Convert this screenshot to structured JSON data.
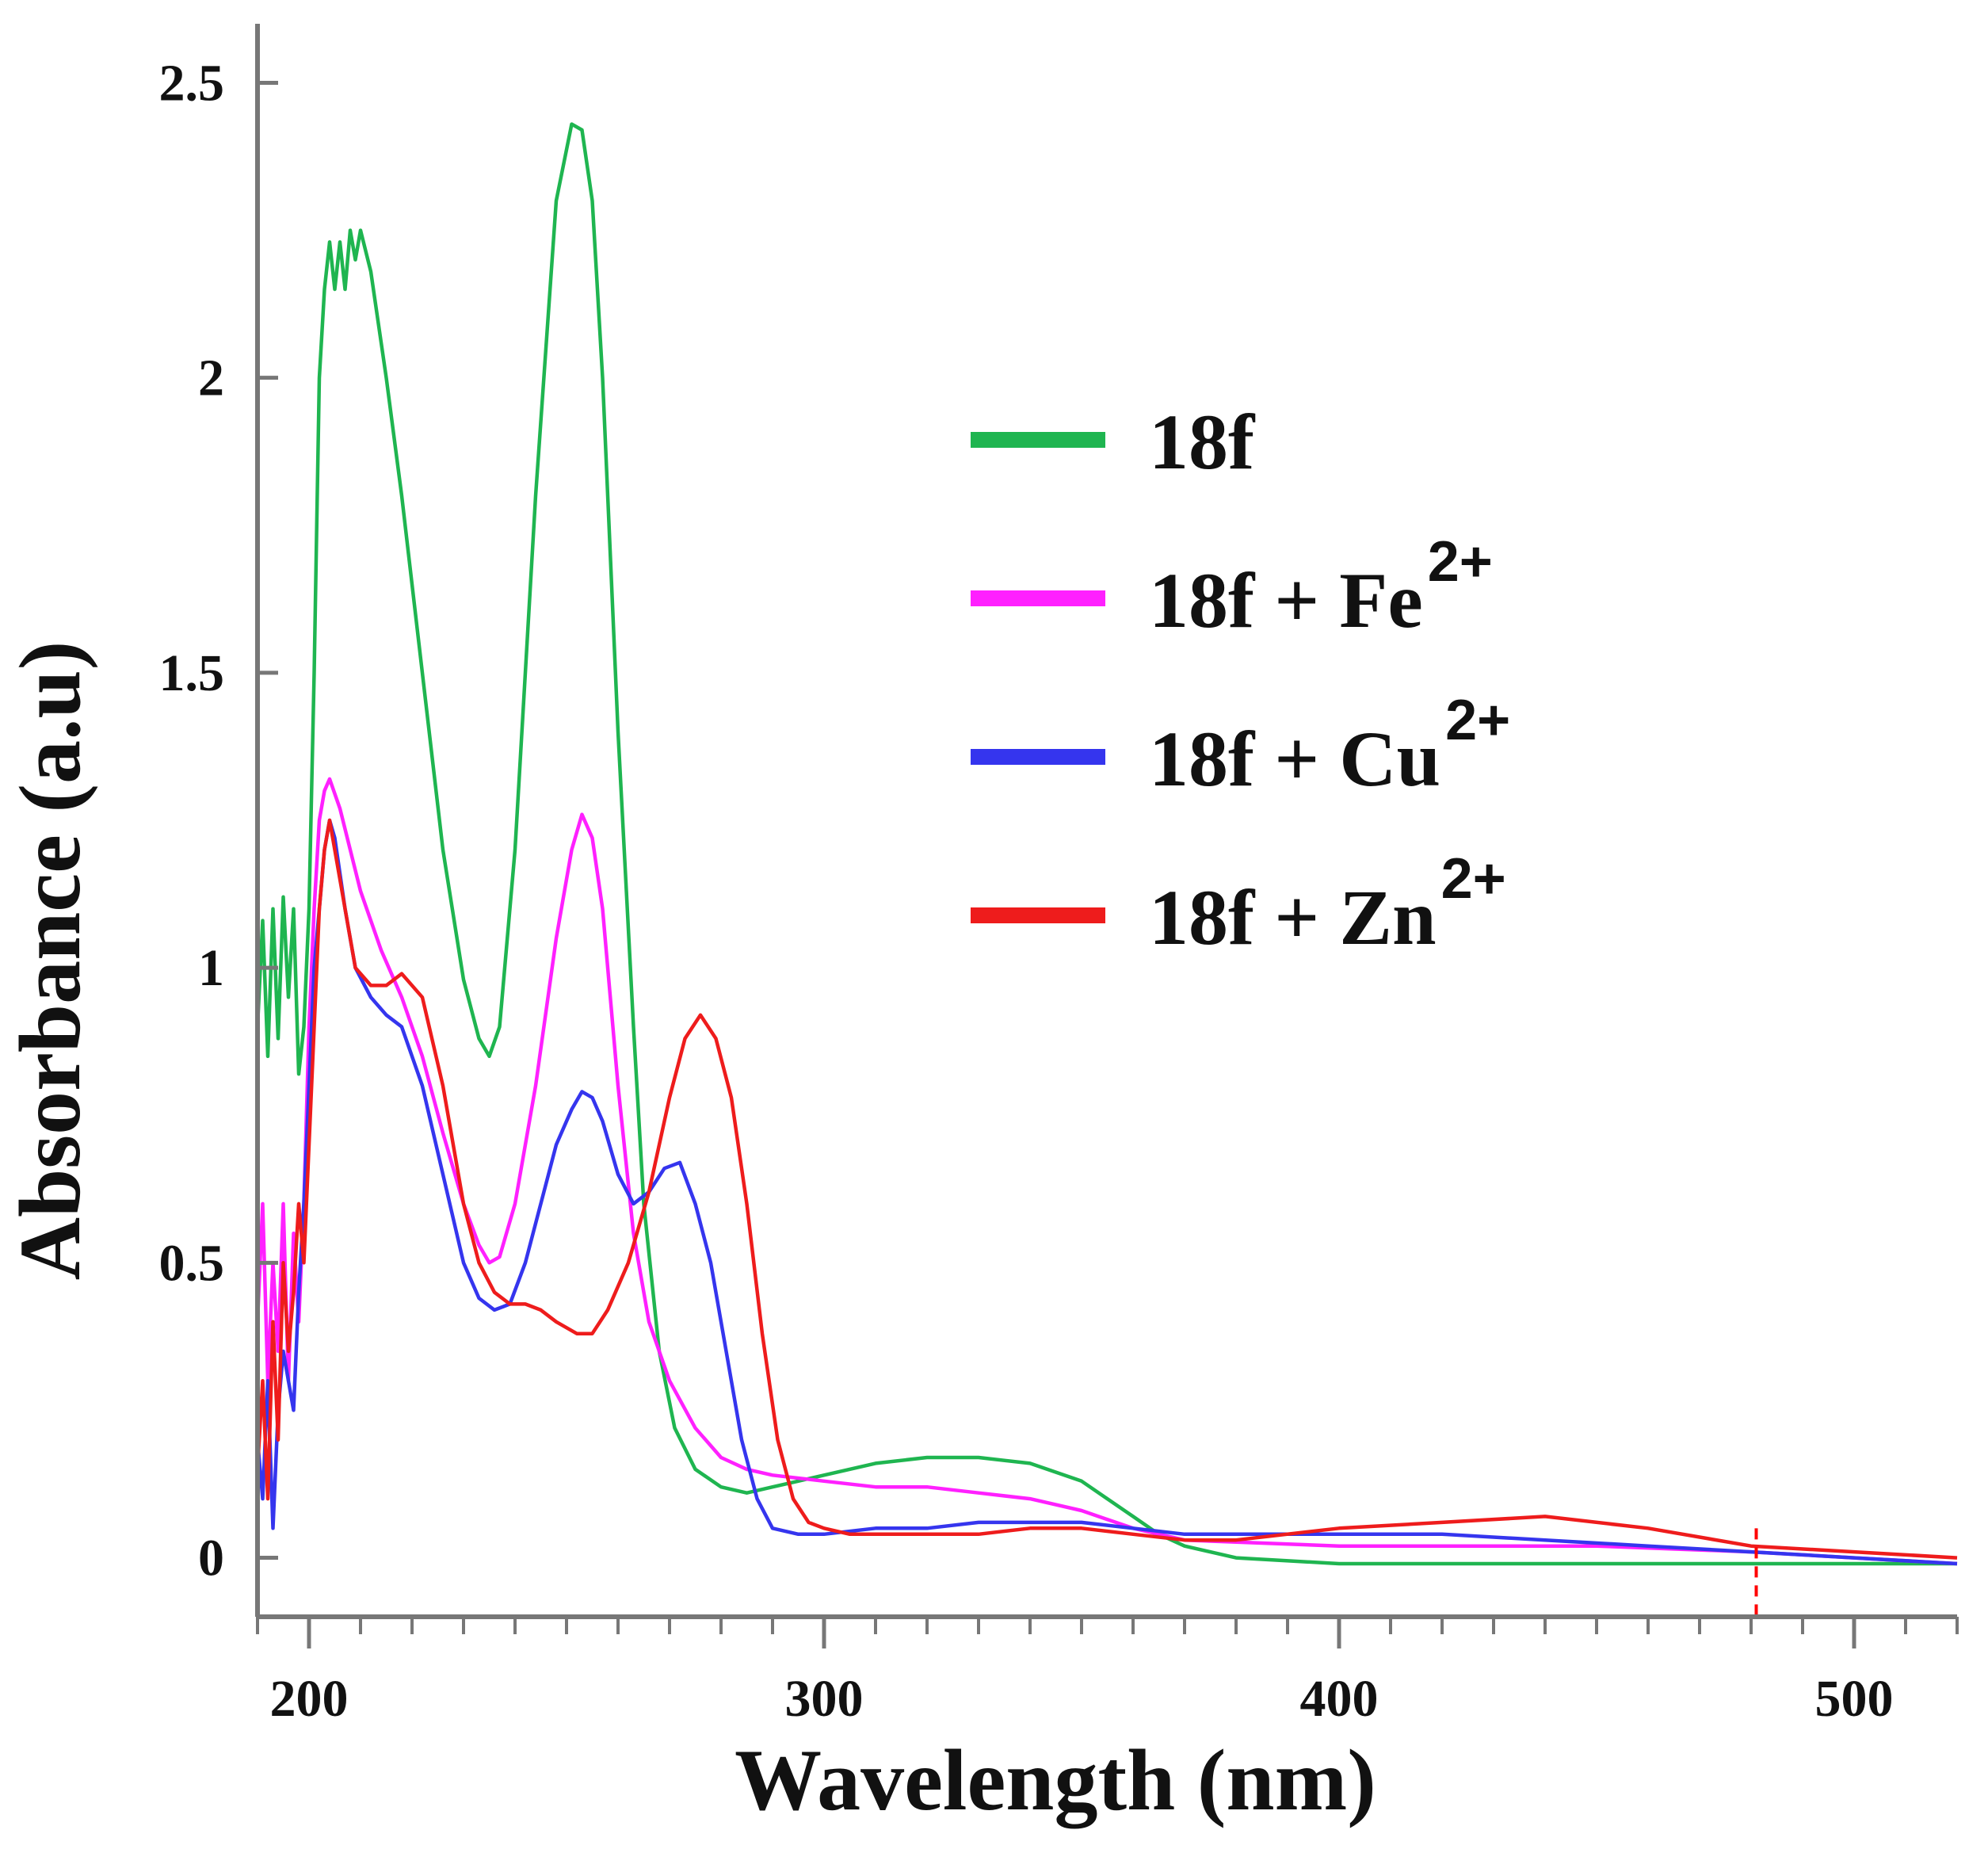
{
  "chart_data": {
    "type": "line",
    "xlabel": "Wavelength (nm)",
    "ylabel": "Absorbance (a.u)",
    "xlim": [
      190,
      520
    ],
    "ylim": [
      -0.1,
      2.6
    ],
    "x_ticks": [
      200,
      300,
      400,
      500
    ],
    "x_tick_labels": [
      "200",
      "300",
      "400",
      "500"
    ],
    "y_ticks": [
      0,
      0.5,
      1,
      1.5,
      2,
      2.5
    ],
    "y_tick_labels": [
      "0",
      "0.5",
      "1",
      "1.5",
      "2",
      "2.5"
    ],
    "x_minor_step": 10,
    "legend_position": "top-right",
    "annotations": [
      {
        "type": "vertical-dashed-marker",
        "x": 481,
        "color": "#ff0000"
      }
    ],
    "series": [
      {
        "name": "18f",
        "label": "18f",
        "sup": "",
        "color": "#1fb550",
        "x": [
          190,
          191,
          192,
          193,
          194,
          195,
          196,
          197,
          198,
          199,
          200,
          201,
          202,
          203,
          204,
          205,
          206,
          207,
          208,
          209,
          210,
          212,
          215,
          218,
          222,
          226,
          230,
          233,
          235,
          237,
          240,
          244,
          248,
          251,
          253,
          255,
          257,
          260,
          263,
          265,
          268,
          271,
          275,
          280,
          285,
          290,
          295,
          300,
          310,
          320,
          330,
          340,
          350,
          355,
          360,
          365,
          370,
          380,
          400,
          430,
          460,
          490,
          520
        ],
        "y": [
          0.9,
          1.08,
          0.85,
          1.1,
          0.88,
          1.12,
          0.95,
          1.1,
          0.82,
          0.9,
          1.1,
          1.5,
          2.0,
          2.15,
          2.23,
          2.15,
          2.23,
          2.15,
          2.25,
          2.2,
          2.25,
          2.18,
          2.0,
          1.8,
          1.5,
          1.2,
          0.98,
          0.88,
          0.85,
          0.9,
          1.2,
          1.8,
          2.3,
          2.43,
          2.42,
          2.3,
          2.0,
          1.4,
          0.9,
          0.6,
          0.35,
          0.22,
          0.15,
          0.12,
          0.11,
          0.12,
          0.13,
          0.14,
          0.16,
          0.17,
          0.17,
          0.16,
          0.13,
          0.1,
          0.07,
          0.04,
          0.02,
          0.0,
          -0.01,
          -0.01,
          -0.01,
          -0.01,
          -0.01
        ]
      },
      {
        "name": "18f + Fe2+",
        "label": "18f + Fe",
        "sup": "2+",
        "color": "#ff20ff",
        "x": [
          190,
          191,
          192,
          193,
          194,
          195,
          196,
          197,
          198,
          199,
          200,
          201,
          202,
          203,
          204,
          206,
          208,
          210,
          214,
          218,
          222,
          226,
          230,
          233,
          235,
          237,
          240,
          244,
          248,
          251,
          253,
          255,
          257,
          260,
          263,
          266,
          270,
          275,
          280,
          285,
          290,
          300,
          310,
          320,
          330,
          340,
          350,
          360,
          370,
          400,
          450,
          480,
          500,
          520
        ],
        "y": [
          0.4,
          0.6,
          0.3,
          0.5,
          0.35,
          0.6,
          0.3,
          0.55,
          0.4,
          0.6,
          0.9,
          1.1,
          1.25,
          1.3,
          1.32,
          1.27,
          1.2,
          1.13,
          1.03,
          0.95,
          0.85,
          0.72,
          0.6,
          0.53,
          0.5,
          0.51,
          0.6,
          0.8,
          1.05,
          1.2,
          1.26,
          1.22,
          1.1,
          0.8,
          0.55,
          0.4,
          0.3,
          0.22,
          0.17,
          0.15,
          0.14,
          0.13,
          0.12,
          0.12,
          0.11,
          0.1,
          0.08,
          0.05,
          0.03,
          0.02,
          0.02,
          0.01,
          0.0,
          -0.01
        ]
      },
      {
        "name": "18f + Cu2+",
        "label": "18f + Cu",
        "sup": "2+",
        "color": "#3535ee",
        "x": [
          190,
          191,
          192,
          193,
          194,
          195,
          196,
          197,
          198,
          199,
          200,
          201,
          202,
          203,
          204,
          205,
          207,
          209,
          212,
          215,
          218,
          222,
          226,
          230,
          233,
          236,
          239,
          242,
          245,
          248,
          251,
          253,
          255,
          257,
          260,
          263,
          266,
          269,
          272,
          275,
          278,
          281,
          284,
          287,
          290,
          295,
          300,
          310,
          320,
          330,
          340,
          350,
          360,
          370,
          400,
          420,
          440,
          460,
          480,
          500,
          520
        ],
        "y": [
          0.2,
          0.1,
          0.3,
          0.05,
          0.25,
          0.35,
          0.3,
          0.25,
          0.45,
          0.6,
          0.8,
          1.0,
          1.1,
          1.2,
          1.25,
          1.22,
          1.1,
          1.0,
          0.95,
          0.92,
          0.9,
          0.8,
          0.65,
          0.5,
          0.44,
          0.42,
          0.43,
          0.5,
          0.6,
          0.7,
          0.76,
          0.79,
          0.78,
          0.74,
          0.65,
          0.6,
          0.62,
          0.66,
          0.67,
          0.6,
          0.5,
          0.35,
          0.2,
          0.1,
          0.05,
          0.04,
          0.04,
          0.05,
          0.05,
          0.06,
          0.06,
          0.06,
          0.05,
          0.04,
          0.04,
          0.04,
          0.03,
          0.02,
          0.01,
          0.0,
          -0.01
        ]
      },
      {
        "name": "18f + Zn2+",
        "label": "18f + Zn",
        "sup": "2+",
        "color": "#ee1c1c",
        "x": [
          190,
          191,
          192,
          193,
          194,
          195,
          196,
          197,
          198,
          199,
          200,
          201,
          202,
          203,
          204,
          205,
          207,
          209,
          212,
          215,
          218,
          222,
          226,
          230,
          233,
          236,
          239,
          242,
          245,
          248,
          252,
          255,
          258,
          262,
          266,
          270,
          273,
          276,
          279,
          282,
          285,
          288,
          291,
          294,
          297,
          300,
          305,
          310,
          320,
          330,
          340,
          350,
          360,
          370,
          380,
          400,
          420,
          440,
          460,
          480,
          500,
          520
        ],
        "y": [
          0.15,
          0.3,
          0.1,
          0.4,
          0.2,
          0.5,
          0.35,
          0.45,
          0.6,
          0.5,
          0.7,
          0.9,
          1.1,
          1.2,
          1.25,
          1.2,
          1.1,
          1.0,
          0.97,
          0.97,
          0.99,
          0.95,
          0.8,
          0.6,
          0.5,
          0.45,
          0.43,
          0.43,
          0.42,
          0.4,
          0.38,
          0.38,
          0.42,
          0.5,
          0.62,
          0.78,
          0.88,
          0.92,
          0.88,
          0.78,
          0.6,
          0.38,
          0.2,
          0.1,
          0.06,
          0.05,
          0.04,
          0.04,
          0.04,
          0.04,
          0.05,
          0.05,
          0.04,
          0.03,
          0.03,
          0.05,
          0.06,
          0.07,
          0.05,
          0.02,
          0.01,
          0.0
        ]
      }
    ]
  }
}
